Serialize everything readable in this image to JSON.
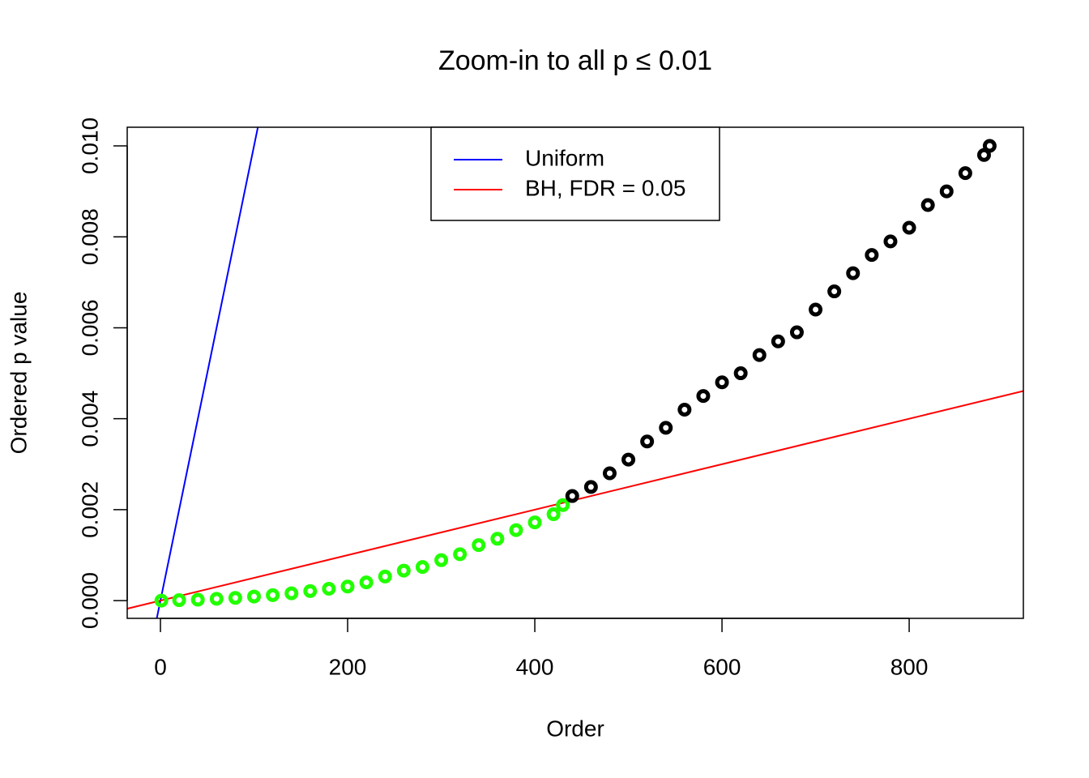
{
  "chart_data": {
    "type": "scatter",
    "title": "Zoom-in to all p ≤ 0.01",
    "x_label": "Order",
    "y_label": "Ordered p value",
    "xlim": [
      -35.5,
      922
    ],
    "ylim": [
      -0.00039,
      0.01041
    ],
    "xticks": [
      0,
      200,
      400,
      600,
      800
    ],
    "yticks": [
      {
        "value": 0,
        "label": "0.000"
      },
      0.002,
      0.004,
      0.006,
      0.008,
      {
        "value": 0.01,
        "label": "0.010"
      }
    ],
    "series": [
      {
        "color": "#22ff00",
        "x": [
          1,
          20,
          40,
          60,
          80,
          100,
          120,
          140,
          160,
          180,
          200,
          220,
          240,
          260,
          280,
          300,
          320,
          340,
          360,
          380,
          400,
          420,
          430
        ],
        "values": [
          0,
          1e-05,
          2e-05,
          4e-05,
          6e-05,
          9e-05,
          0.00012,
          0.00016,
          0.00021,
          0.00026,
          0.00031,
          0.0004,
          0.00053,
          0.00066,
          0.00074,
          0.00089,
          0.00102,
          0.00122,
          0.00136,
          0.00155,
          0.00172,
          0.0019,
          0.0021
        ]
      },
      {
        "color": "#000000",
        "x": [
          440,
          460,
          480,
          500,
          520,
          540,
          560,
          580,
          600,
          620,
          640,
          660,
          680,
          700,
          720,
          740,
          760,
          780,
          800,
          820,
          840,
          860,
          880,
          886
        ],
        "values": [
          0.0023,
          0.0025,
          0.0028,
          0.0031,
          0.0035,
          0.0038,
          0.0042,
          0.0045,
          0.0048,
          0.005,
          0.0054,
          0.0057,
          0.0059,
          0.0064,
          0.0068,
          0.0072,
          0.0076,
          0.0079,
          0.0082,
          0.0087,
          0.009,
          0.0094,
          0.0098,
          0.01
        ]
      }
    ],
    "lines": [
      {
        "name": "Uniform",
        "color": "#0000ff",
        "x": [
          -4,
          104
        ],
        "values": [
          -0.0004,
          0.0104
        ]
      },
      {
        "name": "BH, FDR = 0.05",
        "color": "#ff0000",
        "x": [
          -36,
          922
        ],
        "values": [
          -0.00018,
          0.00461
        ]
      }
    ]
  }
}
